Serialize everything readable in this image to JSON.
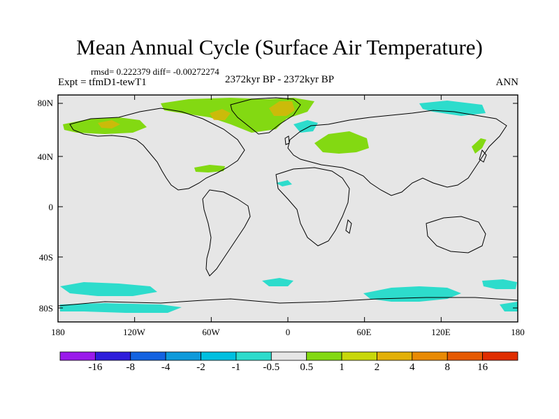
{
  "title": "Mean Annual Cycle (Surface Air Temperature)",
  "stats": "rmsd= 0.222379 diff= -0.00272274",
  "expt": "Expt = tfmD1-tewT1",
  "period": "2372kyr BP - 2372kyr BP",
  "season": "ANN",
  "colors": {
    "background": "#e6e6e6",
    "coast": "#000000"
  },
  "lat_labels": [
    "80N",
    "40N",
    "0",
    "40S",
    "80S"
  ],
  "lon_labels": [
    "180",
    "120W",
    "60W",
    "0",
    "60E",
    "120E",
    "180"
  ],
  "colorbar": {
    "colors": [
      "#9a1aeb",
      "#2e1ddb",
      "#1463e1",
      "#0e9adb",
      "#00bfe0",
      "#2ddccc",
      "#e6e6e6",
      "#83d912",
      "#c8d70a",
      "#e3b008",
      "#e98a04",
      "#e65a02",
      "#e02d00"
    ],
    "labels": [
      "-16",
      "-8",
      "-4",
      "-2",
      "-1",
      "-0.5",
      "0.5",
      "1",
      "2",
      "4",
      "8",
      "16"
    ]
  }
}
